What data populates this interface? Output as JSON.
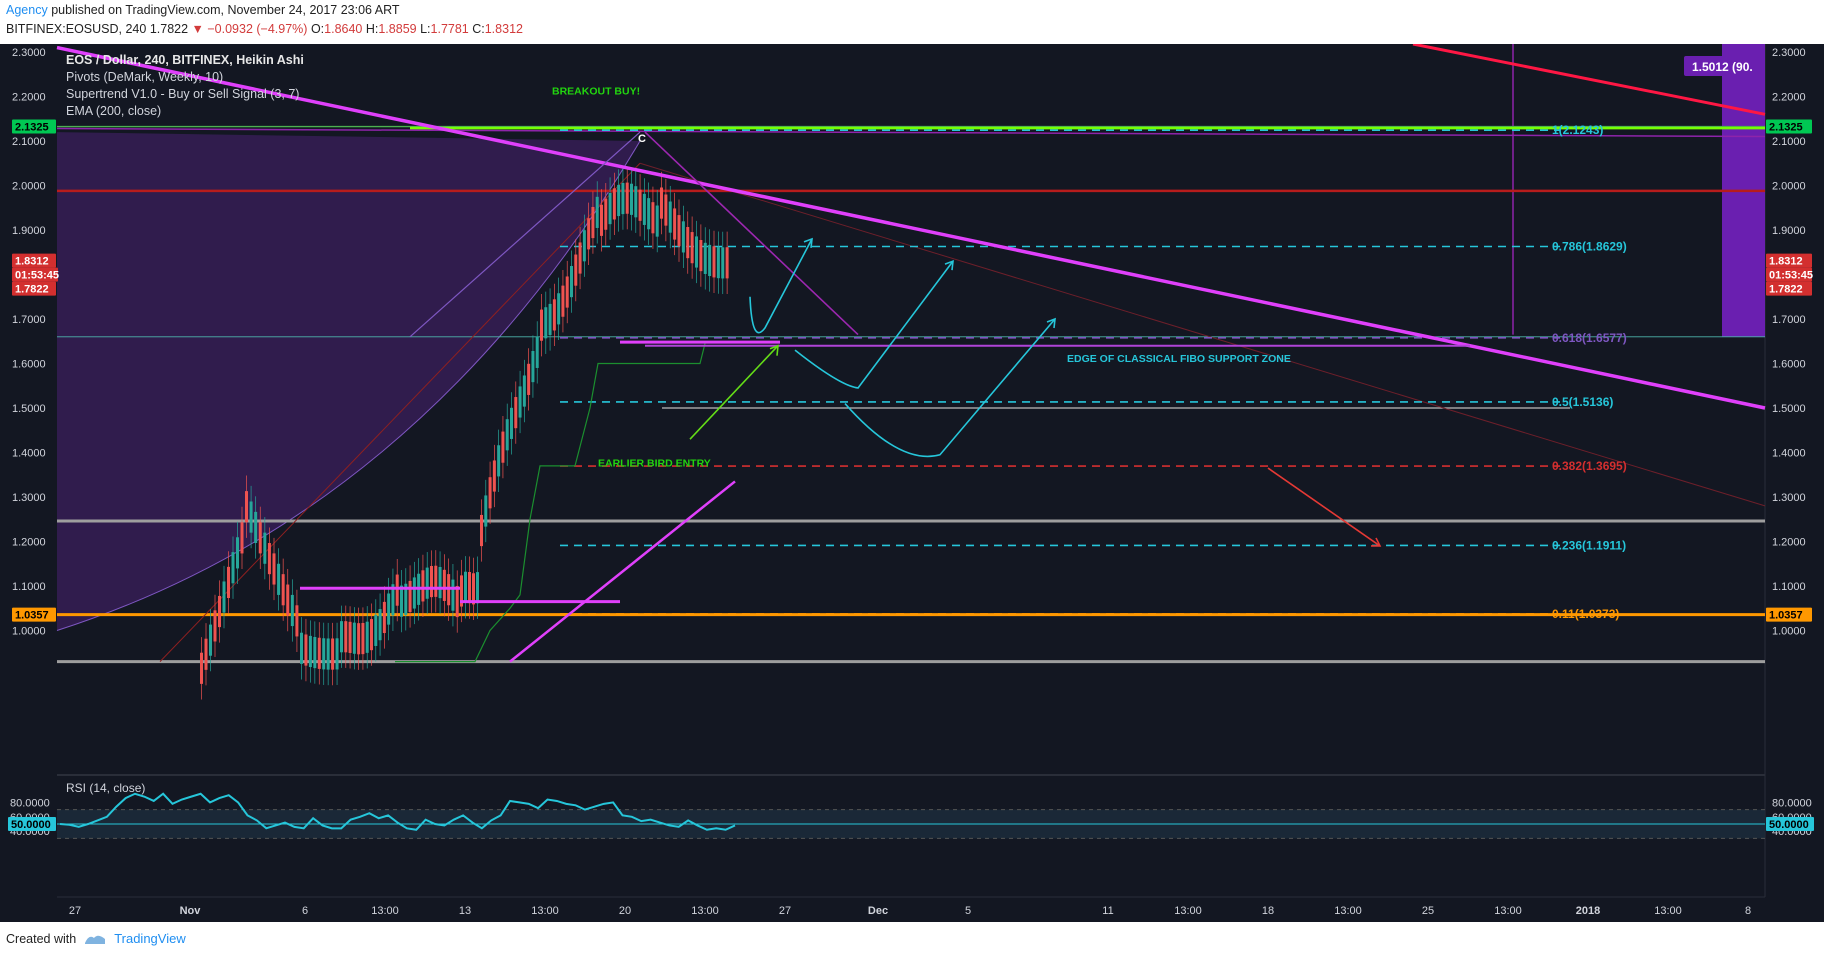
{
  "header": {
    "author": "Agency",
    "published_text": "published on TradingView.com, November 24, 2017 23:06 ART",
    "symbol_line": "BITFINEX:EOSUSD, 240",
    "last": "1.7822",
    "change": "▼ −0.0932 (−4.97%)",
    "open_label": "O:",
    "open": "1.8640",
    "high_label": "H:",
    "high": "1.8859",
    "low_label": "L:",
    "low": "1.7781",
    "close_label": "C:",
    "close": "1.8312"
  },
  "legend": {
    "title": "EOS / Dollar, 240, BITFINEX, Heikin Ashi",
    "indicators": [
      "Pivots (DeMark, Weekly, 10)",
      "Supertrend V1.0 - Buy or Sell Signal (3, 7)",
      "EMA (200, close)"
    ]
  },
  "price_axis": {
    "ticks": [
      "2.3000",
      "2.2000",
      "2.1000",
      "2.0000",
      "1.9000",
      "1.8000",
      "1.7000",
      "1.6000",
      "1.5000",
      "1.4000",
      "1.3000",
      "1.2000",
      "1.1000",
      "1.0000"
    ],
    "badges": {
      "green": "2.1325",
      "last": "1.8312",
      "countdown": "01:53:45",
      "low": "1.7822",
      "orange": "1.0357",
      "purple_box": "1.5012 (90."
    }
  },
  "time_axis": {
    "labels": [
      "27",
      "Nov",
      "6",
      "13:00",
      "13",
      "13:00",
      "20",
      "13:00",
      "27",
      "Dec",
      "5",
      "11",
      "13:00",
      "18",
      "13:00",
      "25",
      "13:00",
      "2018",
      "13:00",
      "8"
    ]
  },
  "fib_levels": [
    {
      "label": "1(2.1243)",
      "price": 2.1243,
      "color": "#26c6da"
    },
    {
      "label": "0.786(1.8629)",
      "price": 1.8629,
      "color": "#26c6da"
    },
    {
      "label": "0.618(1.6577)",
      "price": 1.6577,
      "color": "#7e57c2"
    },
    {
      "label": "0.5(1.5136)",
      "price": 1.5136,
      "color": "#26c6da"
    },
    {
      "label": "0.382(1.3695)",
      "price": 1.3695,
      "color": "#d32f2f"
    },
    {
      "label": "0.236(1.1911)",
      "price": 1.1911,
      "color": "#26c6da"
    },
    {
      "label": "0.11(1.0373)",
      "price": 1.0373,
      "color": "#ff9800"
    }
  ],
  "annotations": {
    "breakout": "BREAKOUT BUY!",
    "early_entry": "EARLIER BIRD ENTRY",
    "fibo_zone": "EDGE OF CLASSICAL FIBO SUPPORT ZONE",
    "pivot_c": "C"
  },
  "rsi": {
    "label": "RSI (14, close)",
    "ticks": [
      "80.0000",
      "60.0000",
      "40.0000"
    ],
    "badge": "50.0000",
    "values": [
      50,
      49,
      46,
      50,
      55,
      60,
      74,
      86,
      92,
      88,
      82,
      92,
      78,
      84,
      88,
      92,
      80,
      86,
      90,
      80,
      62,
      55,
      44,
      48,
      52,
      46,
      44,
      58,
      48,
      44,
      44,
      56,
      60,
      65,
      58,
      62,
      52,
      44,
      42,
      56,
      50,
      48,
      56,
      62,
      52,
      44,
      55,
      62,
      82,
      80,
      78,
      72,
      84,
      82,
      78,
      76,
      70,
      74,
      78,
      80,
      62,
      60,
      54,
      56,
      52,
      48,
      46,
      55,
      48,
      42,
      44,
      42,
      48
    ]
  },
  "footer": {
    "created_with": "Created with",
    "brand": "TradingView"
  },
  "colors": {
    "background": "#131722",
    "magenta": "#e040fb",
    "cyan": "#26c6da",
    "red": "#ff1744",
    "green_line": "#76ff03",
    "orange": "#ff9800",
    "purple": "#7b1fa2"
  }
}
